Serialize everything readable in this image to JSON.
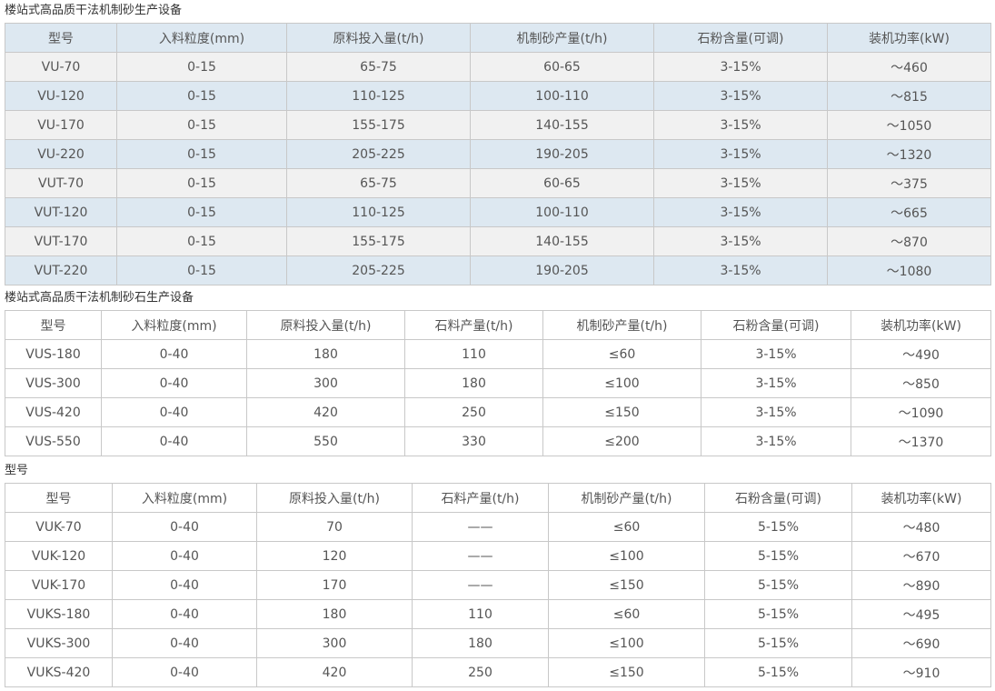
{
  "table1": {
    "caption": "楼站式高品质干法机制砂生产设备",
    "headers": [
      "型号",
      "入料粒度(mm)",
      "原料投入量(t/h)",
      "机制砂产量(t/h)",
      "石粉含量(可调)",
      "装机功率(kW)"
    ],
    "rows": [
      [
        "VU-70",
        "0-15",
        "65-75",
        "60-65",
        "3-15%",
        "～460"
      ],
      [
        "VU-120",
        "0-15",
        "110-125",
        "100-110",
        "3-15%",
        "～815"
      ],
      [
        "VU-170",
        "0-15",
        "155-175",
        "140-155",
        "3-15%",
        "～1050"
      ],
      [
        "VU-220",
        "0-15",
        "205-225",
        "190-205",
        "3-15%",
        "～1320"
      ],
      [
        "VUT-70",
        "0-15",
        "65-75",
        "60-65",
        "3-15%",
        "～375"
      ],
      [
        "VUT-120",
        "0-15",
        "110-125",
        "100-110",
        "3-15%",
        "～665"
      ],
      [
        "VUT-170",
        "0-15",
        "155-175",
        "140-155",
        "3-15%",
        "～870"
      ],
      [
        "VUT-220",
        "0-15",
        "205-225",
        "190-205",
        "3-15%",
        "～1080"
      ]
    ]
  },
  "table2": {
    "caption": "楼站式高品质干法机制砂石生产设备",
    "headers": [
      "型号",
      "入料粒度(mm)",
      "原料投入量(t/h)",
      "石料产量(t/h)",
      "机制砂产量(t/h)",
      "石粉含量(可调)",
      "装机功率(kW)"
    ],
    "rows": [
      [
        "VUS-180",
        "0-40",
        "180",
        "110",
        "≤60",
        "3-15%",
        "～490"
      ],
      [
        "VUS-300",
        "0-40",
        "300",
        "180",
        "≤100",
        "3-15%",
        "～850"
      ],
      [
        "VUS-420",
        "0-40",
        "420",
        "250",
        "≤150",
        "3-15%",
        "～1090"
      ],
      [
        "VUS-550",
        "0-40",
        "550",
        "330",
        "≤200",
        "3-15%",
        "～1370"
      ]
    ]
  },
  "table3": {
    "caption": "型号",
    "headers": [
      "型号",
      "入料粒度(mm)",
      "原料投入量(t/h)",
      "石料产量(t/h)",
      "机制砂产量(t/h)",
      "石粉含量(可调)",
      "装机功率(kW)"
    ],
    "rows": [
      [
        "VUK-70",
        "0-40",
        "70",
        "——",
        "≤60",
        "5-15%",
        "～480"
      ],
      [
        "VUK-120",
        "0-40",
        "120",
        "——",
        "≤100",
        "5-15%",
        "～670"
      ],
      [
        "VUK-170",
        "0-40",
        "170",
        "——",
        "≤150",
        "5-15%",
        "～890"
      ],
      [
        "VUKS-180",
        "0-40",
        "180",
        "110",
        "≤60",
        "5-15%",
        "～495"
      ],
      [
        "VUKS-300",
        "0-40",
        "300",
        "180",
        "≤100",
        "5-15%",
        "～690"
      ],
      [
        "VUKS-420",
        "0-40",
        "420",
        "250",
        "≤150",
        "5-15%",
        "～910"
      ]
    ]
  },
  "colors": {
    "header_bg": "#dde8f1",
    "row_alt_bg": "#f1f1f1",
    "border": "#c8c8c8",
    "text": "#555555"
  }
}
